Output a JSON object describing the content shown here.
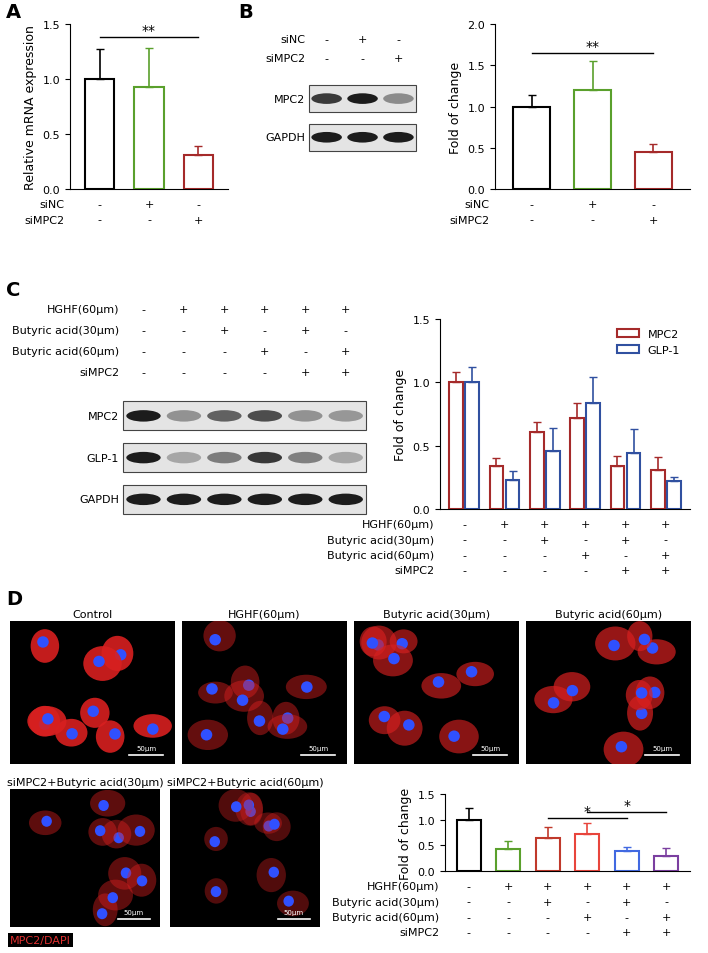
{
  "panel_labels": [
    "A",
    "B",
    "C",
    "D"
  ],
  "chart_data": [
    {
      "type": "bar",
      "y_label": "Relative mRNA expression",
      "categories": [
        null,
        null,
        null
      ],
      "values": [
        1.0,
        0.93,
        0.31
      ],
      "errors": [
        0.27,
        0.35,
        0.08
      ],
      "colors": [
        "#000000",
        "#5aa02c",
        "#a52a2a"
      ],
      "ylim": [
        0,
        1.5
      ],
      "yticks": [
        {
          "value": 0,
          "label": "0.0"
        },
        0.5,
        {
          "value": 1,
          "label": "1.0"
        },
        1.5
      ],
      "conditions": [
        {
          "name": "siNC",
          "signs": [
            "-",
            "+",
            "-"
          ]
        },
        {
          "name": "siMPC2",
          "signs": [
            "-",
            "-",
            "+"
          ]
        }
      ],
      "significance": [
        {
          "text": "**",
          "from": 0,
          "to": 2
        }
      ]
    },
    {
      "type": "bar",
      "y_label": "Fold of change",
      "categories": [
        null,
        null,
        null
      ],
      "values": [
        1.0,
        1.2,
        0.45
      ],
      "errors": [
        0.14,
        0.35,
        0.09
      ],
      "colors": [
        "#000000",
        "#5aa02c",
        "#a52a2a"
      ],
      "ylim": [
        0,
        2
      ],
      "yticks": [
        {
          "value": 0,
          "label": "0.0"
        },
        0.5,
        {
          "value": 1,
          "label": "1.0"
        },
        1.5,
        {
          "value": 2,
          "label": "2.0"
        }
      ],
      "conditions": [
        {
          "name": "siNC",
          "signs": [
            "-",
            "+",
            "-"
          ]
        },
        {
          "name": "siMPC2",
          "signs": [
            "-",
            "-",
            "+"
          ]
        }
      ],
      "significance": [
        {
          "text": "**",
          "from": 0,
          "to": 2
        }
      ]
    },
    {
      "type": "bar",
      "y_label": "Fold of change",
      "categories": [
        null,
        null,
        null,
        null,
        null,
        null
      ],
      "series": [
        {
          "name": "MPC2",
          "color": "#a52a2a",
          "values": [
            1.0,
            0.34,
            0.61,
            0.72,
            0.34,
            0.31
          ],
          "errors": [
            0.08,
            0.06,
            0.08,
            0.12,
            0.08,
            0.1
          ]
        },
        {
          "name": "GLP-1",
          "color": "#3050a0",
          "values": [
            1.0,
            0.23,
            0.46,
            0.84,
            0.44,
            0.22
          ],
          "errors": [
            0.12,
            0.07,
            0.18,
            0.2,
            0.19,
            0.03
          ]
        }
      ],
      "legend": "upper right",
      "ylim": [
        0,
        1.5
      ],
      "yticks": [
        {
          "value": 0,
          "label": "0.0"
        },
        0.5,
        {
          "value": 1,
          "label": "1.0"
        },
        1.5
      ],
      "conditions": [
        {
          "name": "HGHF(60μm)",
          "signs": [
            "-",
            "+",
            "+",
            "+",
            "+",
            "+"
          ]
        },
        {
          "name": "Butyric acid(30μm)",
          "signs": [
            "-",
            "-",
            "+",
            "-",
            "+",
            "-"
          ]
        },
        {
          "name": "Butyric acid(60μm)",
          "signs": [
            "-",
            "-",
            "-",
            "+",
            "-",
            "+"
          ]
        },
        {
          "name": "siMPC2",
          "signs": [
            "-",
            "-",
            "-",
            "-",
            "+",
            "+"
          ]
        }
      ]
    },
    {
      "type": "bar",
      "y_label": "Fold of change",
      "categories": [
        null,
        null,
        null,
        null,
        null,
        null
      ],
      "values": [
        1.0,
        0.42,
        0.64,
        0.73,
        0.38,
        0.3
      ],
      "errors": [
        0.23,
        0.16,
        0.22,
        0.2,
        0.09,
        0.15
      ],
      "colors": [
        "#000000",
        "#5aa02c",
        "#c0392b",
        "#e8453c",
        "#4169e1",
        "#7b3fa0"
      ],
      "ylim": [
        0,
        1.5
      ],
      "yticks": [
        {
          "value": 0,
          "label": "0.0"
        },
        0.5,
        {
          "value": 1,
          "label": "1.0"
        },
        1.5
      ],
      "conditions": [
        {
          "name": "HGHF(60μm)",
          "signs": [
            "-",
            "+",
            "+",
            "+",
            "+",
            "+"
          ]
        },
        {
          "name": "Butyric acid(30μm)",
          "signs": [
            "-",
            "-",
            "+",
            "-",
            "+",
            "-"
          ]
        },
        {
          "name": "Butyric acid(60μm)",
          "signs": [
            "-",
            "-",
            "-",
            "+",
            "-",
            "+"
          ]
        },
        {
          "name": "siMPC2",
          "signs": [
            "-",
            "-",
            "-",
            "-",
            "+",
            "+"
          ]
        }
      ],
      "significance": [
        {
          "text": "*",
          "from": 2,
          "to": 4
        },
        {
          "text": "*",
          "from": 3,
          "to": 5
        }
      ]
    }
  ],
  "blots": [
    {
      "conditions": [
        {
          "name": "siNC",
          "signs": [
            "-",
            "+",
            "-"
          ]
        },
        {
          "name": "siMPC2",
          "signs": [
            "-",
            "-",
            "+"
          ]
        }
      ],
      "bands": [
        "MPC2",
        "GAPDH"
      ]
    },
    {
      "conditions": [
        {
          "name": "HGHF(60μm)",
          "signs": [
            "-",
            "+",
            "+",
            "+",
            "+",
            "+"
          ]
        },
        {
          "name": "Butyric acid(30μm)",
          "signs": [
            "-",
            "-",
            "+",
            "-",
            "+",
            "-"
          ]
        },
        {
          "name": "Butyric acid(60μm)",
          "signs": [
            "-",
            "-",
            "-",
            "+",
            "-",
            "+"
          ]
        },
        {
          "name": "siMPC2",
          "signs": [
            "-",
            "-",
            "-",
            "-",
            "+",
            "+"
          ]
        }
      ],
      "bands": [
        "MPC2",
        "GLP-1",
        "GAPDH"
      ]
    }
  ],
  "micrographs": {
    "titles": [
      "Control",
      "HGHF(60μm)",
      "Butyric acid(30μm)",
      "Butyric acid(60μm)",
      "siMPC2+Butyric acid(30μm)",
      "siMPC2+Butyric acid(60μm)"
    ],
    "scale_bar": "50μm",
    "stain": "MPC2/DAPI"
  }
}
